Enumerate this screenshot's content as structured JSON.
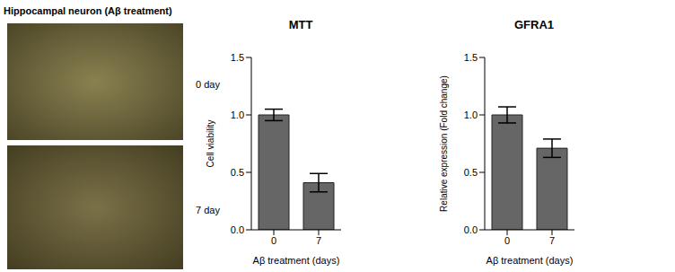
{
  "images": {
    "title": "Hippocampal neuron (Aβ treatment)",
    "labels": [
      "0 day",
      "7 day"
    ]
  },
  "chart_data": [
    {
      "type": "bar",
      "title": "MTT",
      "x_label": "Aβ treatment (days)",
      "y_label": "Cell viability",
      "categories": [
        "0",
        "7"
      ],
      "values": [
        1.0,
        0.41
      ],
      "errors": [
        0.05,
        0.08
      ],
      "color": "#666666",
      "ylim": [
        0,
        1.5
      ],
      "yticks": [
        {
          "value": 0,
          "label": "0.0"
        },
        {
          "value": 0.5,
          "label": "0.5"
        },
        {
          "value": 1,
          "label": "1.0"
        },
        {
          "value": 1.5,
          "label": "1.5"
        }
      ]
    },
    {
      "type": "bar",
      "title": "GFRA1",
      "x_label": "Aβ treatment (days)",
      "y_label": "Relative expression (Fold change)",
      "categories": [
        "0",
        "7"
      ],
      "values": [
        1.0,
        0.71
      ],
      "errors": [
        0.07,
        0.08
      ],
      "color": "#666666",
      "ylim": [
        0,
        1.5
      ],
      "yticks": [
        {
          "value": 0,
          "label": "0.0"
        },
        {
          "value": 0.5,
          "label": "0.5"
        },
        {
          "value": 1,
          "label": "1.0"
        },
        {
          "value": 1.5,
          "label": "1.5"
        }
      ]
    }
  ]
}
